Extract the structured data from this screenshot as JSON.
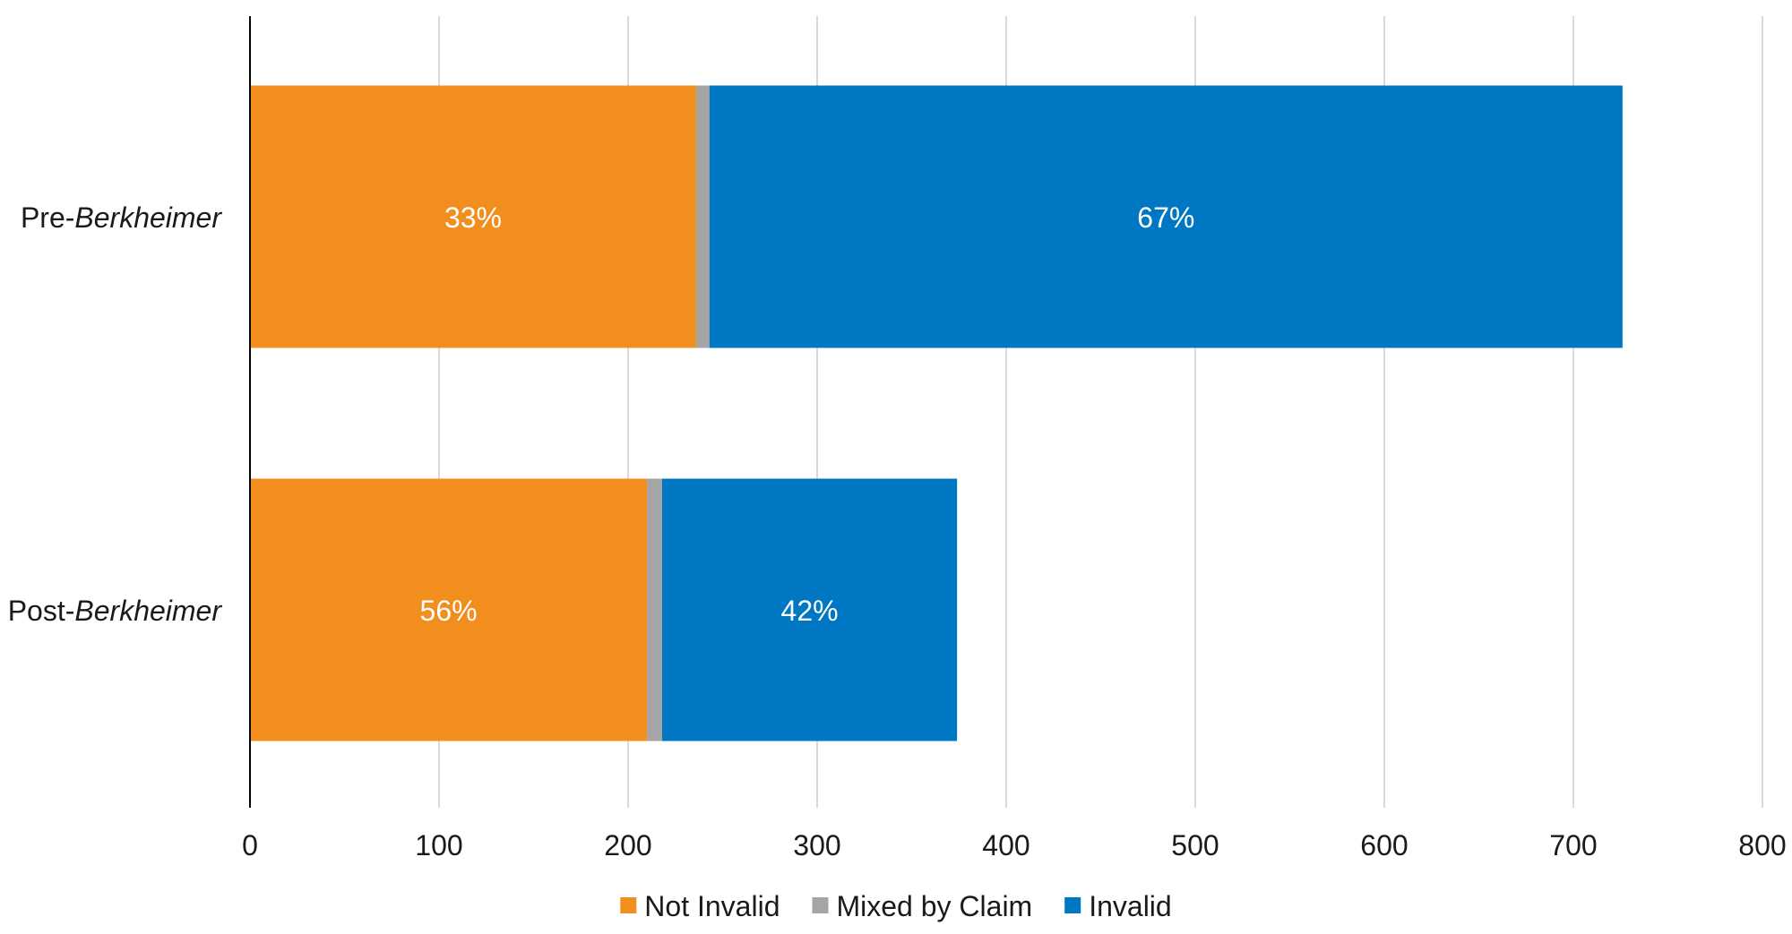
{
  "chart_data": {
    "type": "bar",
    "orientation": "horizontal",
    "stacked": true,
    "categories": [
      {
        "prefix": "Pre-",
        "emphasis": "Berkheimer"
      },
      {
        "prefix": "Post-",
        "emphasis": "Berkheimer"
      }
    ],
    "series": [
      {
        "name": "Not Invalid",
        "color": "#f28e1e",
        "values": [
          236,
          210
        ],
        "labels": [
          "33%",
          "56%"
        ]
      },
      {
        "name": "Mixed by Claim",
        "color": "#a5a5a5",
        "values": [
          7,
          8
        ],
        "labels": [
          "",
          ""
        ]
      },
      {
        "name": "Invalid",
        "color": "#0077c2",
        "values": [
          483,
          156
        ],
        "labels": [
          "67%",
          "42%"
        ]
      }
    ],
    "xlim": [
      0,
      800
    ],
    "xticks": [
      0,
      100,
      200,
      300,
      400,
      500,
      600,
      700,
      800
    ],
    "grid": true,
    "legend_position": "bottom-center",
    "title": "",
    "xlabel": "",
    "ylabel": ""
  }
}
